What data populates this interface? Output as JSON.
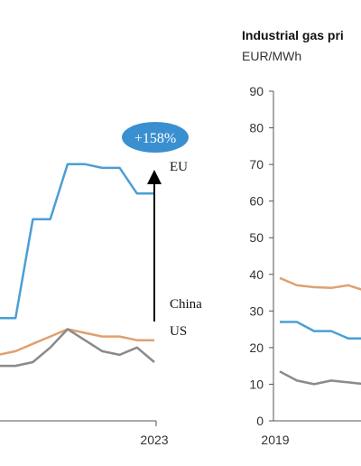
{
  "colors": {
    "eu": "#4a9fd4",
    "china": "#e0a070",
    "us": "#8a8a8a",
    "axis": "#555555",
    "badge": "#3a8fd0",
    "arrow": "#000000"
  },
  "chart_data": [
    {
      "type": "line",
      "partially_cropped": true,
      "x_tick_labels": [
        "2023"
      ],
      "series": [
        {
          "name": "EU",
          "values": [
            28,
            28,
            55,
            55,
            70,
            70,
            69,
            69,
            62,
            62
          ]
        },
        {
          "name": "China",
          "values": [
            18,
            19,
            21,
            23,
            25,
            24,
            23,
            23,
            22,
            22
          ]
        },
        {
          "name": "US",
          "values": [
            15,
            15,
            16,
            20,
            25,
            22,
            19,
            18,
            20,
            16
          ]
        }
      ],
      "annotation": {
        "label": "+158%"
      }
    },
    {
      "type": "line",
      "partially_cropped": true,
      "title": "Industrial gas pri",
      "ylabel": "EUR/MWh",
      "ylim": [
        0,
        90
      ],
      "y_ticks": [
        0,
        10,
        20,
        30,
        40,
        50,
        60,
        70,
        80,
        90
      ],
      "x_tick_labels": [
        "2019"
      ],
      "series": [
        {
          "color_role": "china",
          "values": [
            39,
            37,
            36.5,
            36.3,
            37,
            35.5
          ]
        },
        {
          "color_role": "eu",
          "values": [
            27,
            27,
            24.5,
            24.5,
            22.5,
            22.5
          ]
        },
        {
          "color_role": "us",
          "values": [
            13.5,
            11,
            10,
            11,
            10.5,
            10
          ]
        }
      ]
    }
  ]
}
